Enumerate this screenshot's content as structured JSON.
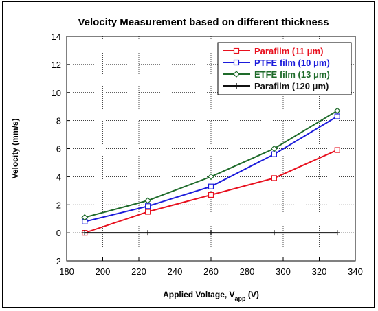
{
  "chart_data": {
    "type": "line",
    "title": "Velocity Measurement based on different thickness",
    "xlabel": "Applied Voltage, V",
    "xlabel_sub": "app",
    "xlabel_unit": " (V)",
    "ylabel": "Velocity (mm/s)",
    "xlim": [
      180,
      340
    ],
    "ylim": [
      -2,
      14
    ],
    "xticks": [
      180,
      200,
      220,
      240,
      260,
      280,
      300,
      320,
      340
    ],
    "yticks": [
      -2,
      0,
      2,
      4,
      6,
      8,
      10,
      12,
      14
    ],
    "grid": true,
    "legend_position": "top-right",
    "x": [
      190,
      225,
      260,
      295,
      330
    ],
    "series": [
      {
        "name": "Parafilm (11 μm)",
        "color": "#e8101e",
        "marker": "square",
        "values": [
          0.0,
          1.5,
          2.7,
          3.9,
          5.9
        ]
      },
      {
        "name": "PTFE film (10 μm)",
        "color": "#1b1bdb",
        "marker": "square",
        "values": [
          0.8,
          1.9,
          3.3,
          5.6,
          8.3
        ]
      },
      {
        "name": "ETFE film (13 μm)",
        "color": "#1e6b2a",
        "marker": "diamond",
        "values": [
          1.1,
          2.3,
          4.0,
          6.0,
          8.7
        ]
      },
      {
        "name": "Parafilm (120 μm)",
        "color": "#111111",
        "marker": "cross",
        "values": [
          0.0,
          0.0,
          0.0,
          0.0,
          0.0
        ]
      }
    ]
  }
}
